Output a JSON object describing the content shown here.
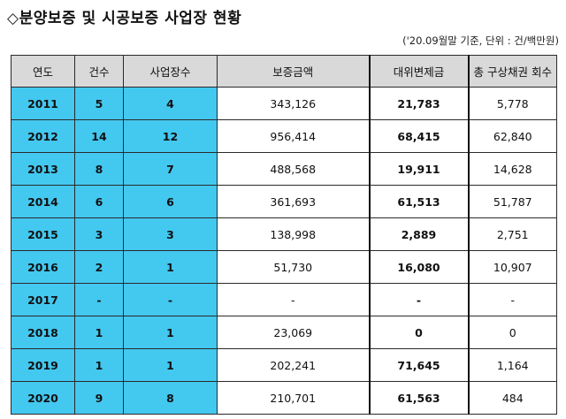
{
  "title": "◇분양보증 및 시공보증 사업장 현황",
  "note": "('20.09월말 기준, 단위 : 건/백만원)",
  "table": {
    "headers": [
      "연도",
      "건수",
      "사업장수",
      "보증금액",
      "대위변제금",
      "총 구상채권 회수"
    ],
    "rows": [
      [
        "2011",
        "5",
        "4",
        "343,126",
        "21,783",
        "5,778"
      ],
      [
        "2012",
        "14",
        "12",
        "956,414",
        "68,415",
        "62,840"
      ],
      [
        "2013",
        "8",
        "7",
        "488,568",
        "19,911",
        "14,628"
      ],
      [
        "2014",
        "6",
        "6",
        "361,693",
        "61,513",
        "51,787"
      ],
      [
        "2015",
        "3",
        "3",
        "138,998",
        "2,889",
        "2,751"
      ],
      [
        "2016",
        "2",
        "1",
        "51,730",
        "16,080",
        "10,907"
      ],
      [
        "2017",
        "-",
        "-",
        "-",
        "-",
        "-"
      ],
      [
        "2018",
        "1",
        "1",
        "23,069",
        "0",
        "0"
      ],
      [
        "2019",
        "1",
        "1",
        "202,241",
        "71,645",
        "1,164"
      ],
      [
        "2020",
        "9",
        "8",
        "210,701",
        "61,563",
        "484"
      ]
    ]
  },
  "colors": {
    "highlight": "#43c8f0",
    "header_bg": "#d9d9d9"
  }
}
